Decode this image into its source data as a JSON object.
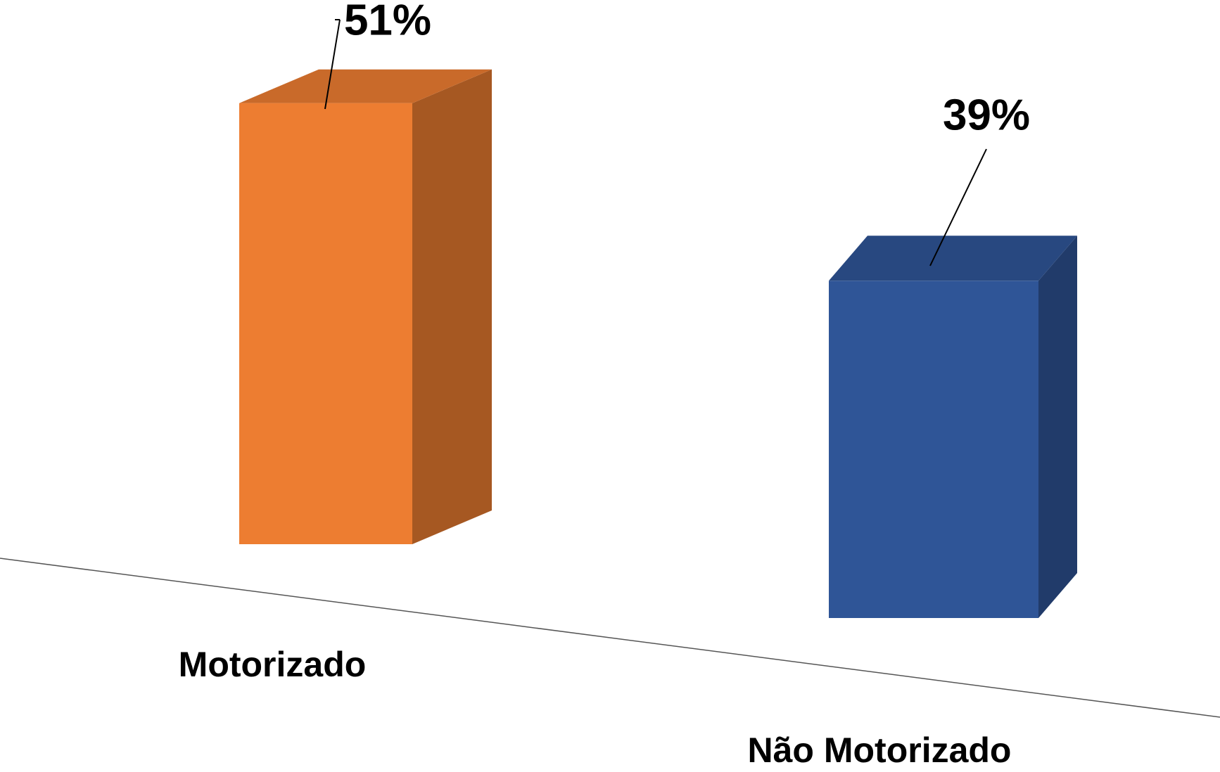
{
  "chart_data": {
    "type": "bar3d",
    "categories": [
      "Motorizado",
      "Não Motorizado"
    ],
    "values": [
      51,
      39
    ],
    "value_labels": [
      "51%",
      "39%"
    ],
    "colors": [
      "#ED7D31",
      "#2F5597"
    ]
  }
}
